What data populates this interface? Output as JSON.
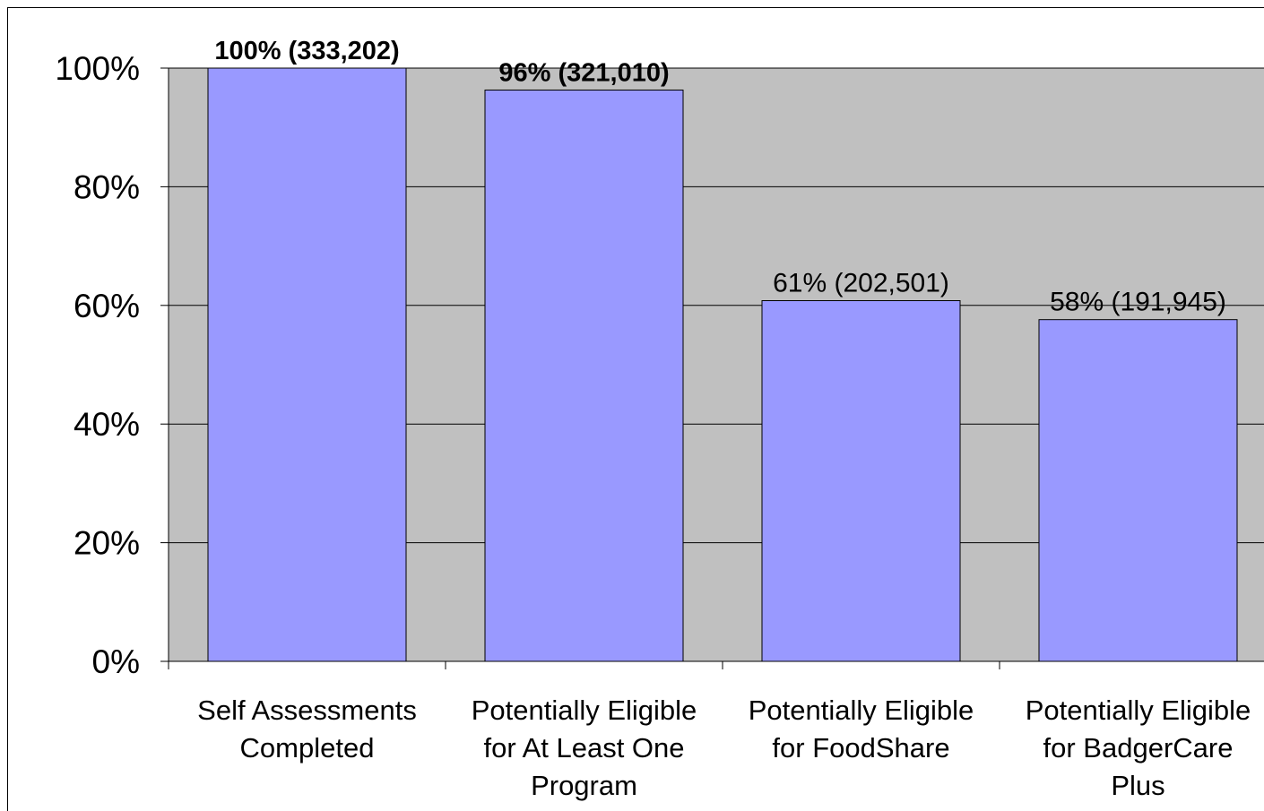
{
  "chart_data": {
    "type": "bar",
    "title": "",
    "xlabel": "",
    "ylabel": "",
    "categories": [
      [
        "Self Assessments",
        "Completed"
      ],
      [
        "Potentially Eligible",
        "for At Least One",
        "Program"
      ],
      [
        "Potentially Eligible",
        "for FoodShare"
      ],
      [
        "Potentially Eligible",
        "for BadgerCare",
        "Plus"
      ]
    ],
    "values": [
      100,
      96.3,
      60.8,
      57.6
    ],
    "data_labels": [
      "100% (333,202)",
      "96% (321,010)",
      "61% (202,501)",
      "58% (191,945)"
    ],
    "data_label_bold": [
      true,
      true,
      false,
      false
    ],
    "ylim": [
      0,
      100
    ],
    "yticks": [
      0,
      20,
      40,
      60,
      80,
      100
    ],
    "ytick_labels": [
      "0%",
      "20%",
      "40%",
      "60%",
      "80%",
      "100%"
    ],
    "grid": true,
    "legend": "none",
    "colors": {
      "bar_fill": "#9999ff",
      "plot_background": "#c0c0c0",
      "gridline": "#000000",
      "bar_stroke": "#000000"
    }
  }
}
